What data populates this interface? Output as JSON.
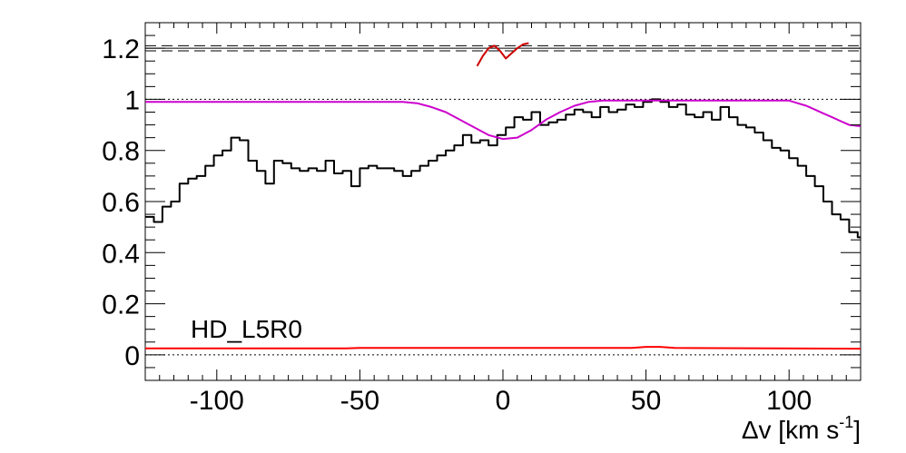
{
  "chart_data": {
    "type": "line",
    "title": "",
    "xlabel": "Δv [km s",
    "xlabel_sup": "-1",
    "xlabel_close": "]",
    "ylabel": "",
    "xlim": [
      -125,
      125
    ],
    "ylim": [
      -0.1,
      1.3
    ],
    "grid": false,
    "x_ticks": [
      -100,
      -50,
      0,
      50,
      100
    ],
    "x_tick_labels": [
      "-100",
      "-50",
      "0",
      "50",
      "100"
    ],
    "y_ticks": [
      0,
      0.2,
      0.4,
      0.6,
      0.8,
      1,
      1.2
    ],
    "y_tick_labels": [
      "0",
      "0.2",
      "0.4",
      "0.6",
      "0.8",
      "1",
      "1.2"
    ],
    "annotation": "HD_L5R0",
    "reference_lines": [
      {
        "y": 1.0,
        "style": "dotted"
      },
      {
        "y": 0.0,
        "style": "dotted"
      },
      {
        "y": 1.2,
        "style": "solid"
      },
      {
        "y": 1.19,
        "style": "dashed"
      },
      {
        "y": 1.21,
        "style": "dashed"
      }
    ],
    "series": [
      {
        "style": "step",
        "color": "#000000",
        "x": [
          -125,
          -122,
          -119,
          -116,
          -113,
          -110,
          -107,
          -104,
          -101,
          -98,
          -95,
          -92,
          -89,
          -86,
          -83,
          -80,
          -77,
          -74,
          -71,
          -68,
          -65,
          -62,
          -59,
          -56,
          -53,
          -50,
          -47,
          -44,
          -41,
          -38,
          -35,
          -32,
          -29,
          -26,
          -23,
          -20,
          -17,
          -14,
          -11,
          -8,
          -5,
          -2,
          1,
          4,
          7,
          10,
          13,
          16,
          19,
          22,
          25,
          28,
          31,
          34,
          37,
          40,
          43,
          46,
          49,
          52,
          55,
          58,
          61,
          64,
          67,
          70,
          73,
          76,
          79,
          82,
          85,
          88,
          91,
          94,
          97,
          100,
          103,
          106,
          109,
          112,
          115,
          118,
          121,
          124
        ],
        "y": [
          0.54,
          0.52,
          0.58,
          0.6,
          0.67,
          0.69,
          0.7,
          0.74,
          0.78,
          0.8,
          0.85,
          0.84,
          0.76,
          0.72,
          0.67,
          0.76,
          0.75,
          0.73,
          0.72,
          0.73,
          0.72,
          0.76,
          0.71,
          0.72,
          0.66,
          0.73,
          0.74,
          0.73,
          0.73,
          0.72,
          0.7,
          0.72,
          0.74,
          0.76,
          0.78,
          0.8,
          0.82,
          0.86,
          0.83,
          0.84,
          0.82,
          0.86,
          0.89,
          0.93,
          0.92,
          0.95,
          0.9,
          0.91,
          0.92,
          0.94,
          0.96,
          0.95,
          0.93,
          0.97,
          0.95,
          0.96,
          0.98,
          0.97,
          0.99,
          1.0,
          0.99,
          0.97,
          0.98,
          0.94,
          0.93,
          0.95,
          0.92,
          0.97,
          0.93,
          0.9,
          0.89,
          0.87,
          0.84,
          0.81,
          0.8,
          0.77,
          0.74,
          0.7,
          0.66,
          0.6,
          0.55,
          0.53,
          0.48,
          0.46
        ]
      },
      {
        "style": "line",
        "color": "#cc00cc",
        "x": [
          -125,
          -35,
          -30,
          -25,
          -20,
          -15,
          -10,
          -5,
          0,
          5,
          10,
          15,
          20,
          25,
          30,
          35,
          40,
          45,
          100,
          103,
          106,
          109,
          112,
          115,
          118,
          121,
          125
        ],
        "y": [
          0.99,
          0.99,
          0.985,
          0.97,
          0.95,
          0.92,
          0.89,
          0.86,
          0.845,
          0.85,
          0.88,
          0.92,
          0.95,
          0.975,
          0.99,
          0.995,
          0.995,
          0.995,
          0.995,
          0.985,
          0.975,
          0.96,
          0.945,
          0.93,
          0.915,
          0.9,
          0.895
        ]
      },
      {
        "style": "line",
        "color": "#ff0000",
        "x": [
          -125,
          -55,
          -50,
          45,
          50,
          55,
          60,
          125
        ],
        "y": [
          0.025,
          0.025,
          0.027,
          0.027,
          0.031,
          0.031,
          0.027,
          0.024
        ]
      },
      {
        "style": "line",
        "color": "#cc0000",
        "x": [
          -9,
          -7,
          -5,
          -3,
          -1,
          1,
          3,
          5,
          7,
          9
        ],
        "y": [
          1.13,
          1.17,
          1.2,
          1.21,
          1.19,
          1.16,
          1.18,
          1.2,
          1.215,
          1.22
        ]
      }
    ]
  }
}
